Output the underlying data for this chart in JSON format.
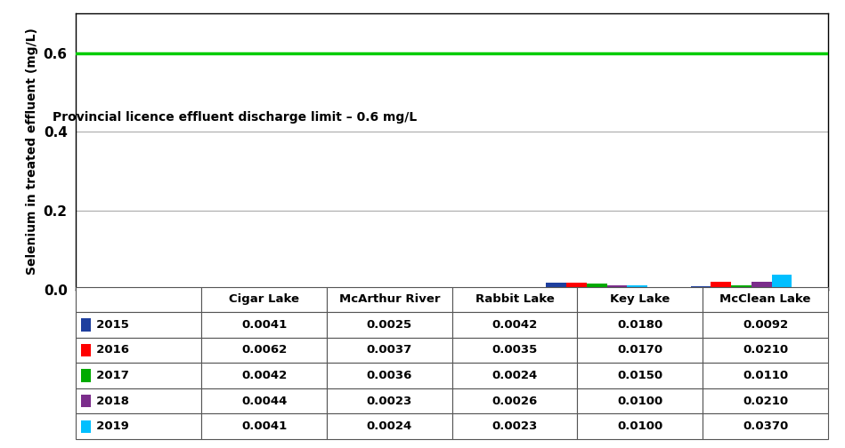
{
  "categories": [
    "Cigar Lake",
    "McArthur River",
    "Rabbit Lake",
    "Key Lake",
    "McClean Lake"
  ],
  "years": [
    "2015",
    "2016",
    "2017",
    "2018",
    "2019"
  ],
  "year_colors": [
    "#1e3f9e",
    "#ff0000",
    "#00aa00",
    "#7b2d8b",
    "#00bfff"
  ],
  "values": {
    "2015": [
      0.0041,
      0.0025,
      0.0042,
      0.018,
      0.0092
    ],
    "2016": [
      0.0062,
      0.0037,
      0.0035,
      0.017,
      0.021
    ],
    "2017": [
      0.0042,
      0.0036,
      0.0024,
      0.015,
      0.011
    ],
    "2018": [
      0.0044,
      0.0023,
      0.0026,
      0.01,
      0.021
    ],
    "2019": [
      0.0041,
      0.0024,
      0.0023,
      0.01,
      0.037
    ]
  },
  "ylabel": "Selenium in treated effluent (mg/L)",
  "ylim": [
    0,
    0.7
  ],
  "yticks": [
    0.0,
    0.2,
    0.4,
    0.6
  ],
  "discharge_limit": 0.6,
  "discharge_label": "Provincial licence effluent discharge limit – 0.6 mg/L",
  "discharge_line_color": "#00cc00",
  "bar_width": 0.14,
  "background_color": "#ffffff",
  "plot_bg_color": "#ffffff",
  "grid_color": "#aaaaaa",
  "table_data": {
    "2015": [
      "0.0041",
      "0.0025",
      "0.0042",
      "0.0180",
      "0.0092"
    ],
    "2016": [
      "0.0062",
      "0.0037",
      "0.0035",
      "0.0170",
      "0.0210"
    ],
    "2017": [
      "0.0042",
      "0.0036",
      "0.0024",
      "0.0150",
      "0.0110"
    ],
    "2018": [
      "0.0044",
      "0.0023",
      "0.0026",
      "0.0100",
      "0.0210"
    ],
    "2019": [
      "0.0041",
      "0.0024",
      "0.0023",
      "0.0100",
      "0.0370"
    ]
  }
}
